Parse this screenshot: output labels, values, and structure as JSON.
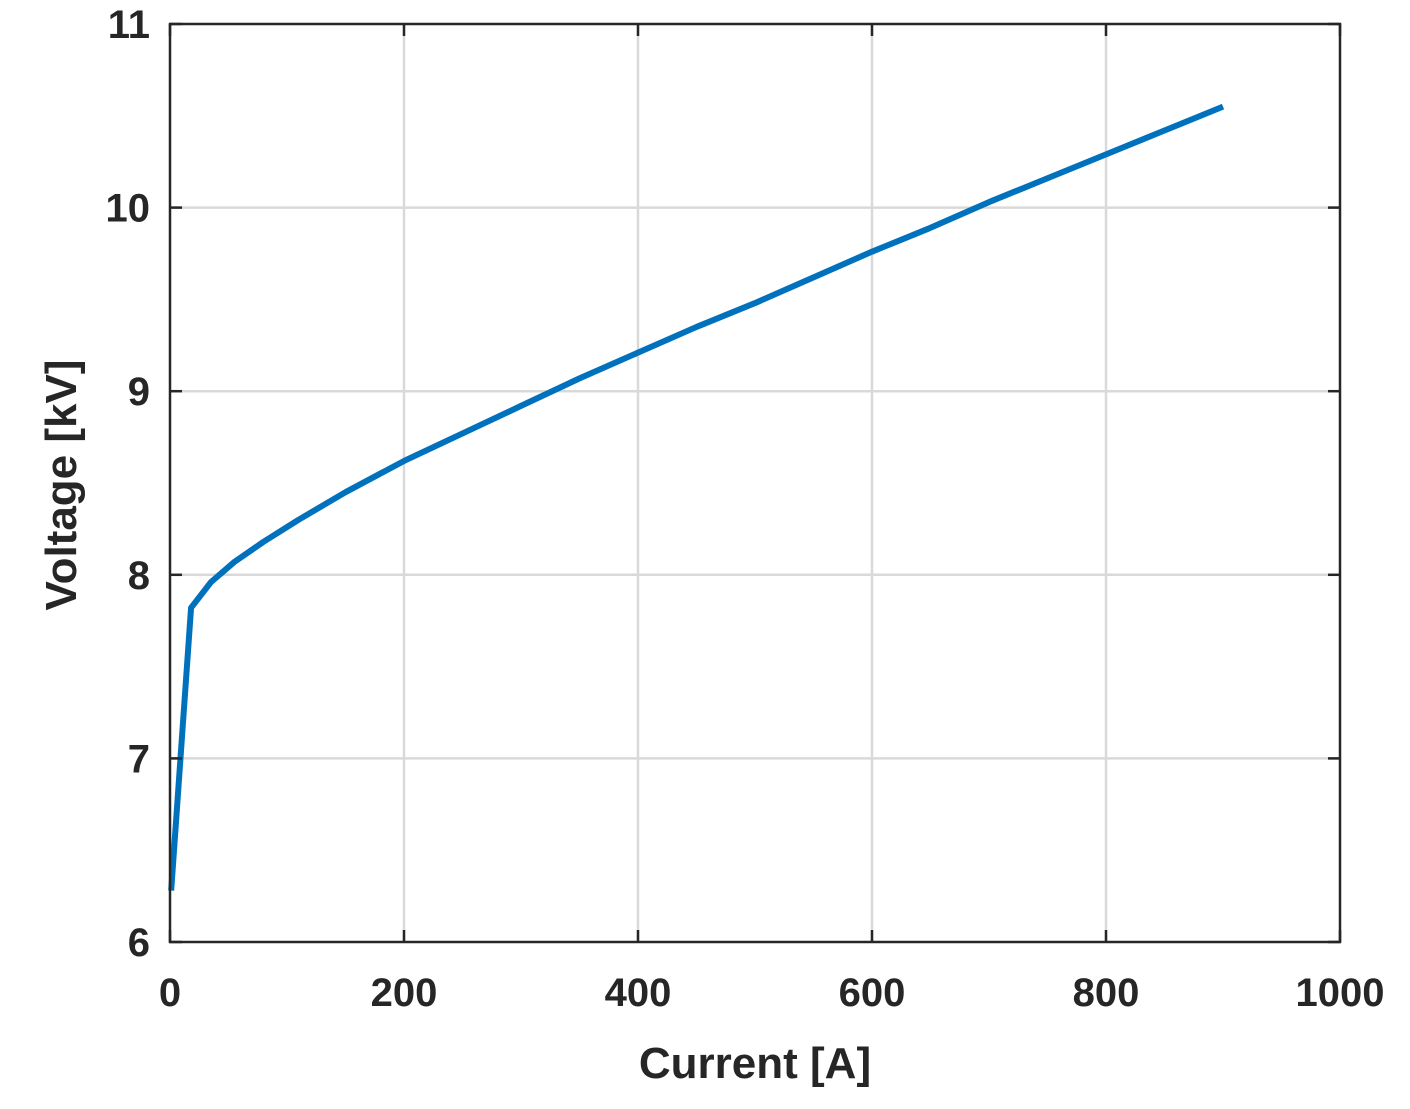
{
  "chart_data": {
    "type": "line",
    "title": "",
    "xlabel": "Current [A]",
    "ylabel": "Voltage [kV]",
    "xlim": [
      0,
      1000
    ],
    "ylim": [
      6,
      11
    ],
    "xticks": [
      0,
      200,
      400,
      600,
      800,
      1000
    ],
    "yticks": [
      6,
      7,
      8,
      9,
      10,
      11
    ],
    "grid": true,
    "colors": {
      "series": "#0072BD",
      "axes": "#262626",
      "grid": "#d9d9d9"
    },
    "series": [
      {
        "x": [
          1,
          18,
          35,
          55,
          80,
          110,
          150,
          200,
          250,
          300,
          350,
          400,
          450,
          500,
          550,
          600,
          650,
          700,
          750,
          800,
          850,
          900
        ],
        "values": [
          6.28,
          7.82,
          7.96,
          8.07,
          8.18,
          8.3,
          8.45,
          8.62,
          8.77,
          8.92,
          9.07,
          9.21,
          9.35,
          9.48,
          9.62,
          9.76,
          9.89,
          10.03,
          10.16,
          10.29,
          10.42,
          10.55
        ]
      }
    ]
  }
}
